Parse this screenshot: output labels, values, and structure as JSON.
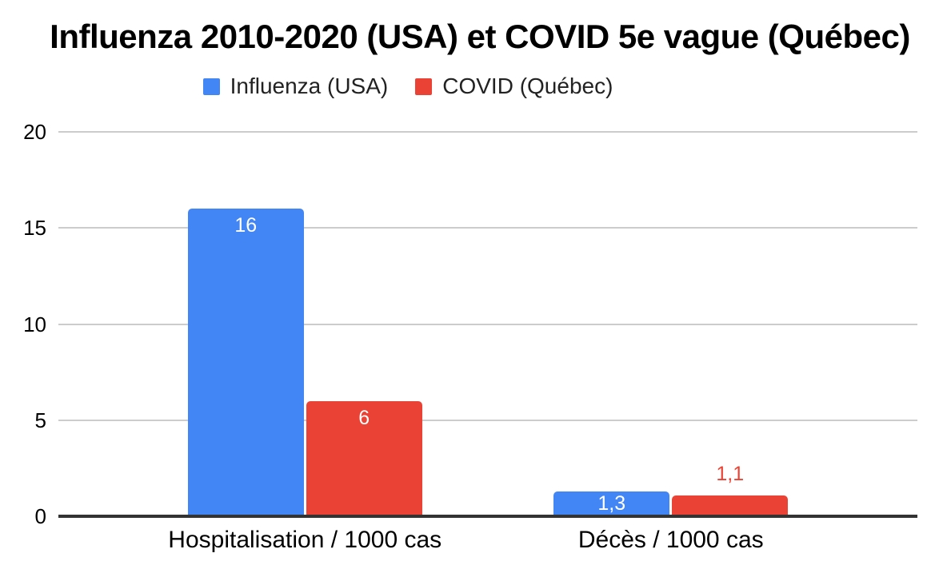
{
  "chart_data": {
    "type": "bar",
    "title": "Influenza 2010-2020 (USA) et COVID 5e vague (Québec)",
    "categories": [
      "Hospitalisation / 1000 cas",
      "Décès / 1000 cas"
    ],
    "series": [
      {
        "name": "Influenza (USA)",
        "color": "#4285F4",
        "values": [
          16,
          1.3
        ],
        "data_labels": [
          {
            "text": "16",
            "placement": "inside",
            "color": "#ffffff"
          },
          {
            "text": "1,3",
            "placement": "inside",
            "color": "#ffffff"
          }
        ]
      },
      {
        "name": "COVID (Québec)",
        "color": "#EA4335",
        "values": [
          6,
          1.1
        ],
        "data_labels": [
          {
            "text": "6",
            "placement": "inside",
            "color": "#ffffff"
          },
          {
            "text": "1,1",
            "placement": "outside",
            "color": "#EA4335"
          }
        ]
      }
    ],
    "ylim": [
      0,
      20
    ],
    "yticks": [
      "0",
      "5",
      "10",
      "15",
      "20"
    ],
    "grid": true,
    "legend_position": "top",
    "gridline_color": "#cccccc",
    "baseline_color": "#333333",
    "title_color": "#000000",
    "legend_text_color": "#222222"
  }
}
